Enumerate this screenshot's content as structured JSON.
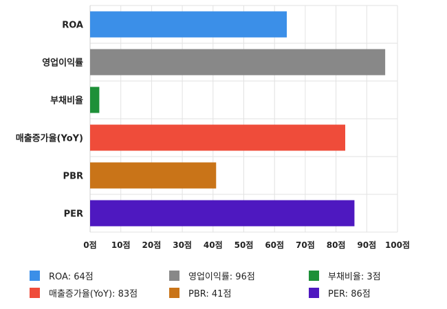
{
  "chart_data": {
    "type": "bar",
    "orientation": "horizontal",
    "categories": [
      "ROA",
      "영업이익률",
      "부채비율",
      "매출증가율(YoY)",
      "PBR",
      "PER"
    ],
    "values": [
      64,
      96,
      3,
      83,
      41,
      86
    ],
    "colors": [
      "#3b8fe8",
      "#888888",
      "#1e9038",
      "#ef4c3a",
      "#c97418",
      "#4e18c0"
    ],
    "xlim": [
      0,
      100
    ],
    "x_ticks": [
      0,
      10,
      20,
      30,
      40,
      50,
      60,
      70,
      80,
      90,
      100
    ],
    "x_tick_labels": [
      "0점",
      "10점",
      "20점",
      "30점",
      "40점",
      "50점",
      "60점",
      "70점",
      "80점",
      "90점",
      "100점"
    ],
    "grid": true,
    "legend": {
      "placement": "bottom",
      "entries": [
        "ROA: 64점",
        "영업이익률: 96점",
        "부채비율: 3점",
        "매출증가율(YoY): 83점",
        "PBR: 41점",
        "PER: 86점"
      ]
    }
  }
}
